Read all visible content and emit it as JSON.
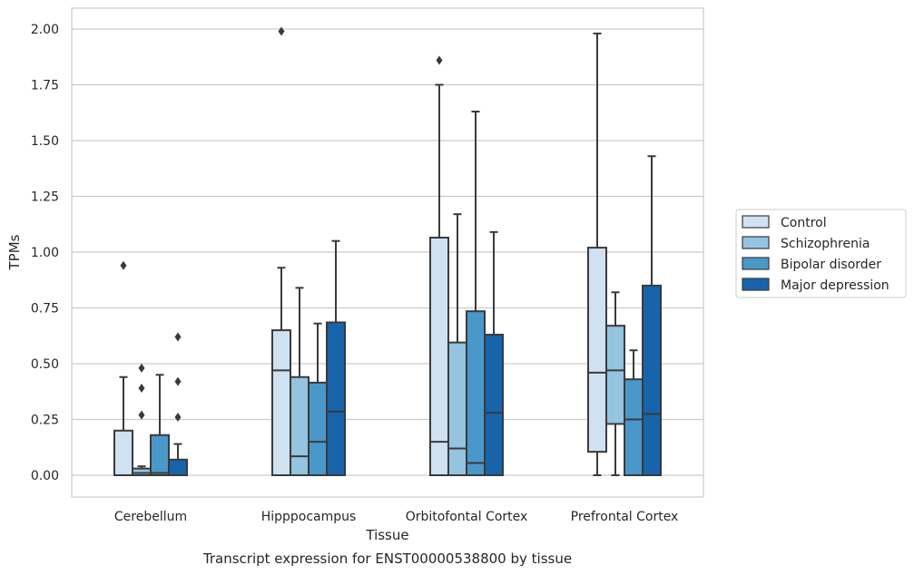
{
  "chart_data": {
    "type": "box",
    "caption": "Transcript expression for ENST00000538800 by tissue",
    "xlabel": "Tissue",
    "ylabel": "TPMs",
    "ylim": [
      -0.1,
      2.1
    ],
    "yticks": [
      "0.00",
      "0.25",
      "0.50",
      "0.75",
      "1.00",
      "1.25",
      "1.50",
      "1.75",
      "2.00"
    ],
    "grid": "horizontal",
    "legend_position": "right",
    "categories": [
      "Cerebellum",
      "Hipppocampus",
      "Orbitofontal Cortex",
      "Prefrontal Cortex"
    ],
    "series": [
      {
        "name": "Control",
        "color": "#d0e1f2",
        "boxes": [
          {
            "q1": 0.0,
            "median": 0.0,
            "q3": 0.2,
            "whisker_low": 0.0,
            "whisker_high": 0.44,
            "outliers": [
              0.94
            ]
          },
          {
            "q1": 0.0,
            "median": 0.47,
            "q3": 0.65,
            "whisker_low": 0.0,
            "whisker_high": 0.93,
            "outliers": [
              1.99
            ]
          },
          {
            "q1": 0.0,
            "median": 0.15,
            "q3": 1.065,
            "whisker_low": 0.0,
            "whisker_high": 1.75,
            "outliers": [
              1.86
            ]
          },
          {
            "q1": 0.105,
            "median": 0.46,
            "q3": 1.02,
            "whisker_low": 0.0,
            "whisker_high": 1.98,
            "outliers": []
          }
        ]
      },
      {
        "name": "Schizophrenia",
        "color": "#94c4df",
        "boxes": [
          {
            "q1": 0.0,
            "median": 0.01,
            "q3": 0.03,
            "whisker_low": 0.0,
            "whisker_high": 0.04,
            "outliers": [
              0.27,
              0.39,
              0.48
            ]
          },
          {
            "q1": 0.0,
            "median": 0.085,
            "q3": 0.44,
            "whisker_low": 0.0,
            "whisker_high": 0.84,
            "outliers": []
          },
          {
            "q1": 0.0,
            "median": 0.12,
            "q3": 0.595,
            "whisker_low": 0.0,
            "whisker_high": 1.17,
            "outliers": []
          },
          {
            "q1": 0.23,
            "median": 0.47,
            "q3": 0.67,
            "whisker_low": 0.0,
            "whisker_high": 0.82,
            "outliers": []
          }
        ]
      },
      {
        "name": "Bipolar disorder",
        "color": "#4a98c9",
        "boxes": [
          {
            "q1": 0.0,
            "median": 0.01,
            "q3": 0.18,
            "whisker_low": 0.0,
            "whisker_high": 0.45,
            "outliers": []
          },
          {
            "q1": 0.0,
            "median": 0.15,
            "q3": 0.415,
            "whisker_low": 0.0,
            "whisker_high": 0.68,
            "outliers": []
          },
          {
            "q1": 0.0,
            "median": 0.055,
            "q3": 0.735,
            "whisker_low": 0.0,
            "whisker_high": 1.63,
            "outliers": []
          },
          {
            "q1": 0.0,
            "median": 0.25,
            "q3": 0.43,
            "whisker_low": 0.0,
            "whisker_high": 0.56,
            "outliers": []
          }
        ]
      },
      {
        "name": "Major depression",
        "color": "#1764ab",
        "boxes": [
          {
            "q1": 0.0,
            "median": 0.0,
            "q3": 0.07,
            "whisker_low": 0.0,
            "whisker_high": 0.14,
            "outliers": [
              0.26,
              0.42,
              0.62
            ]
          },
          {
            "q1": 0.0,
            "median": 0.285,
            "q3": 0.685,
            "whisker_low": 0.0,
            "whisker_high": 1.05,
            "outliers": []
          },
          {
            "q1": 0.0,
            "median": 0.28,
            "q3": 0.63,
            "whisker_low": 0.0,
            "whisker_high": 1.09,
            "outliers": []
          },
          {
            "q1": 0.0,
            "median": 0.275,
            "q3": 0.85,
            "whisker_low": 0.0,
            "whisker_high": 1.43,
            "outliers": []
          }
        ]
      }
    ]
  }
}
